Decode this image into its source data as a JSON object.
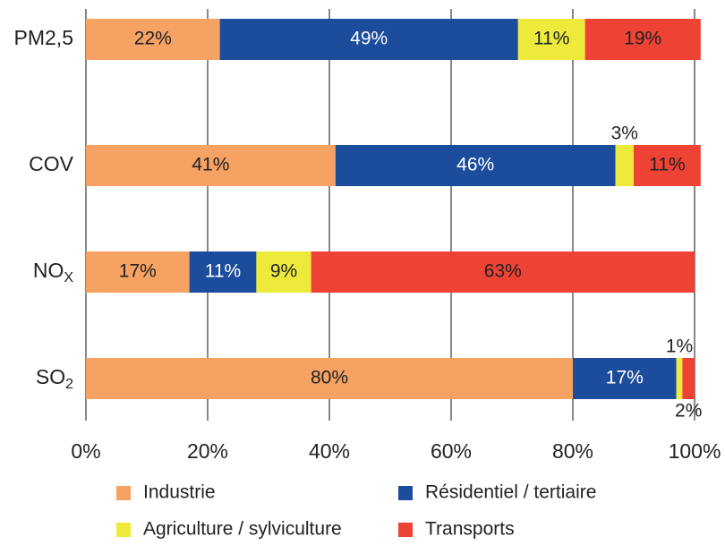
{
  "chart_data": {
    "type": "stacked_barh",
    "categories": [
      "PM2,5",
      "COV",
      {
        "text": "NO",
        "sub": "X"
      },
      {
        "text": "SO",
        "sub": "2"
      }
    ],
    "series": [
      {
        "name": "Industrie",
        "color": "#f5a263",
        "label_color": "#222222",
        "values": [
          22,
          41,
          17,
          80
        ],
        "value_labels": [
          "22%",
          "41%",
          "17%",
          "80%"
        ]
      },
      {
        "name": "Résidentiel / tertiaire",
        "color": "#1c4c9c",
        "label_color": "#ffffff",
        "values": [
          49,
          46,
          11,
          17
        ],
        "value_labels": [
          "49%",
          "46%",
          "11%",
          "17%"
        ]
      },
      {
        "name": "Agriculture / sylviculture",
        "color": "#eeea3c",
        "label_color": "#222222",
        "values": [
          11,
          3,
          9,
          1
        ],
        "value_labels": [
          "11%",
          "3%",
          "9%",
          "1%"
        ]
      },
      {
        "name": "Transports",
        "color": "#ee4235",
        "label_color": "#222222",
        "values": [
          19,
          11,
          63,
          2
        ],
        "value_labels": [
          "19%",
          "11%",
          "63%",
          "2%"
        ]
      }
    ],
    "xlim": [
      0,
      100
    ],
    "xticks": [
      {
        "value": 0,
        "label": "0%"
      },
      {
        "value": 20,
        "label": "20%"
      },
      {
        "value": 40,
        "label": "40%"
      },
      {
        "value": 60,
        "label": "60%"
      },
      {
        "value": 80,
        "label": "80%"
      },
      {
        "value": 100,
        "label": "100%"
      }
    ],
    "grid": true
  }
}
